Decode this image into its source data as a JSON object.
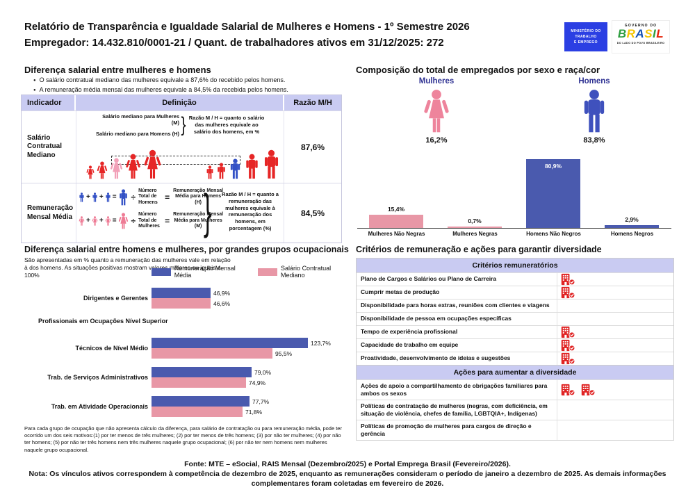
{
  "colors": {
    "blue_bar": "#4a5aae",
    "pink_bar": "#e897a6",
    "red_figure": "#e62626",
    "pink_highlight": "#f2a0b8",
    "blue_highlight": "#3351c6",
    "female_icon": "#ee849c",
    "male_icon": "#3f51bd",
    "navy_label": "#2e3192",
    "lavender_header": "#c9cbf2",
    "check_icon_red": "#e02424"
  },
  "header": {
    "title": "Relatório de Transparência e Igualdade Salarial de Mulheres e Homens - 1º Semestre 2026",
    "subtitle": "Empregador: 14.432.810/0001-21 / Quant. de trabalhadores ativos em 31/12/2025: 272",
    "mte_logo_lines": [
      "MINISTÉRIO DO",
      "TRABALHO",
      "E EMPREGO"
    ],
    "gov_logo": {
      "top": "GOVERNO DO",
      "brand": "BRASIL",
      "bottom": "DO LADO DO POVO BRASILEIRO"
    }
  },
  "salary_gap": {
    "title": "Diferença salarial entre mulheres e homens",
    "bullets": [
      "O salário contratual mediano das mulheres equivale a 87,6% do recebido pelos homens.",
      "A remuneração média mensal das mulheres equivale a 84,5% da recebida pelos homens."
    ],
    "headers": [
      "Indicador",
      "Definição",
      "Razão M/H"
    ],
    "brace_glyph": "}",
    "row1": {
      "indicator": "Salário Contratual Mediano",
      "line_women": "Salário mediano para Mulheres (M)",
      "line_men": "Salário mediano para Homens (H)",
      "note": "Razão M / H = quanto o salário das mulheres equivale ao salário dos homens, em %",
      "ratio": "87,6%",
      "women_heights": [
        20,
        26,
        31,
        37,
        43
      ],
      "women_colors": [
        "#e62626",
        "#e62626",
        "#f2a0b8",
        "#e62626",
        "#e62626"
      ],
      "men_heights": [
        20,
        24,
        30,
        37,
        43
      ],
      "men_colors": [
        "#e62626",
        "#e62626",
        "#3351c6",
        "#e62626",
        "#e62626"
      ]
    },
    "row2": {
      "indicator": "Remuneração Mensal Média",
      "symbols": {
        "plus": "+",
        "equals": "=",
        "divide": "÷"
      },
      "calc_men": {
        "divisor": "Número Total de Homens",
        "result": "Remuneração Mensal Média para Homens (H)",
        "color": "#3351c6"
      },
      "calc_women": {
        "divisor": "Número Total de Mulheres",
        "result": "Remuneração Mensal Média para Mulheres (M)",
        "color": "#ee7b95"
      },
      "note": "Razão M / H = quanto a remuneração das mulheres equivale à remuneração dos homens, em porcentagem (%)",
      "ratio": "84,5%"
    }
  },
  "composition": {
    "title": "Composição do total de empregados por sexo e raça/cor",
    "groups": [
      {
        "label": "Mulheres",
        "pct": "16,2%",
        "icon": "female-icon",
        "color": "#ee849c"
      },
      {
        "label": "Homens",
        "pct": "83,8%",
        "icon": "male-icon",
        "color": "#3f51bd"
      }
    ]
  },
  "occupational": {
    "title": "Diferença salarial entre homens e mulheres, por grandes grupos ocupacionais",
    "subtitle": "São apresentadas em % quanto a remuneração das mulheres vale em relação à dos homens. As situações positivas mostram valores maiores ou iguais a 100%",
    "footnote": "Para cada grupo de ocupação que não apresenta cálculo da diferença, para salário de contratação ou para remuneração média, pode ter ocorrido um dos seis motivos:(1) por ter menos de três mulheres; (2) por ter menos de três homens; (3) por não ter mulheres; (4) por não ter homens; (5) por não ter três homens nem três mulheres naquele grupo ocupacional; (6) por não ter nem homens nem mulheres naquele grupo ocupacional."
  },
  "criteria": {
    "title": "Critérios de remuneração e ações para garantir diversidade",
    "sections": [
      {
        "header": "Critérios remuneratórios",
        "rows": [
          {
            "label": "Plano de Cargos e Salários ou Plano de Carreira",
            "checks": 1
          },
          {
            "label": "Cumprir metas de produção",
            "checks": 1
          },
          {
            "label": "Disponibilidade para horas extras, reuniões com clientes e viagens",
            "checks": 0
          },
          {
            "label": "Disponibilidade de pessoa em ocupações específicas",
            "checks": 0
          },
          {
            "label": "Tempo de experiência profissional",
            "checks": 1
          },
          {
            "label": "Capacidade de trabalho em equipe",
            "checks": 1
          },
          {
            "label": "Proatividade, desenvolvimento de ideias e sugestões",
            "checks": 1
          }
        ]
      },
      {
        "header": "Ações para aumentar a diversidade",
        "rows": [
          {
            "label": "Ações de apoio a compartilhamento de obrigações familiares para ambos os sexos",
            "checks": 2
          },
          {
            "label": "Políticas de contratação de mulheres (negras, com deficiência, em situação de violência, chefes de família, LGBTQIA+, Indígenas)",
            "checks": 0
          },
          {
            "label": "Políticas de promoção de mulheres para cargos de direção e gerência",
            "checks": 0
          }
        ]
      }
    ]
  },
  "chart_data": [
    {
      "type": "bar",
      "title": "Composição do total de empregados por sexo e raça/cor",
      "categories": [
        "Mulheres Não Negras",
        "Mulheres Negras",
        "Homens Não Negros",
        "Homens Negros"
      ],
      "values": [
        15.4,
        0.7,
        80.9,
        2.9
      ],
      "labels": [
        "15,4%",
        "0,7%",
        "80,9%",
        "2,9%"
      ],
      "colors": [
        "#e897a6",
        "#e897a6",
        "#4a5aae",
        "#4a5aae"
      ],
      "xlabel": "",
      "ylabel": "",
      "ylim": [
        0,
        85
      ],
      "grid": false,
      "extra_totals": {
        "Mulheres": 16.2,
        "Homens": 83.8
      }
    },
    {
      "type": "bar",
      "orientation": "horizontal",
      "title": "Diferença salarial entre homens e mulheres, por grandes grupos ocupacionais",
      "categories": [
        "Dirigentes e Gerentes",
        "Profissionais em Ocupações Nível Superior",
        "Técnicos de Nível Médio",
        "Trab. de Serviços Administrativos",
        "Trab. em Atividade Operacionais"
      ],
      "series": [
        {
          "name": "Remuneração Mensal Média",
          "color": "#4a5aae",
          "values": [
            46.9,
            null,
            123.7,
            79.0,
            77.7
          ],
          "labels": [
            "46,9%",
            null,
            "123,7%",
            "79,0%",
            "77,7%"
          ]
        },
        {
          "name": "Salário Contratual Mediano",
          "color": "#e897a6",
          "values": [
            46.6,
            null,
            95.5,
            74.9,
            71.8
          ],
          "labels": [
            "46,6%",
            null,
            "95,5%",
            "74,9%",
            "71,8%"
          ]
        }
      ],
      "xlim": [
        0,
        130
      ],
      "unit": "%",
      "legend_position": "top",
      "grid": false
    }
  ],
  "footer": {
    "source": "Fonte: MTE – eSocial, RAIS Mensal (Dezembro/2025) e Portal Emprega Brasil (Fevereiro/2026).",
    "note": "Nota: Os vínculos ativos correspondem à competência de dezembro de 2025, enquanto as remunerações consideram o período de janeiro a dezembro de 2025. As demais informações complementares foram coletadas em fevereiro de 2026."
  }
}
